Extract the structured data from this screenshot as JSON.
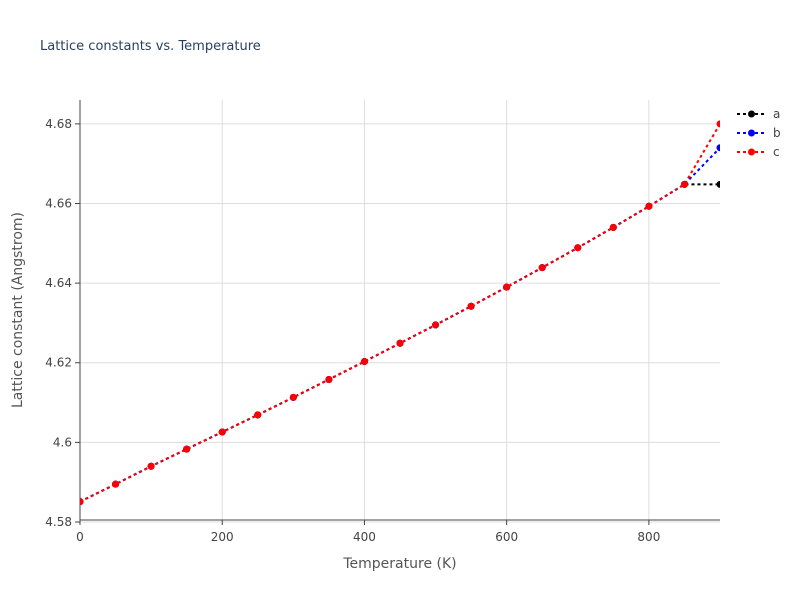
{
  "chart_data": {
    "type": "line",
    "title": "Lattice constants vs. Temperature",
    "xlabel": "Temperature (K)",
    "ylabel": "Lattice constant (Angstrom)",
    "xlim": [
      0,
      900
    ],
    "ylim": [
      4.5805,
      4.686
    ],
    "xticks": [
      0,
      200,
      400,
      600,
      800
    ],
    "xtick_labels": [
      "0",
      "200",
      "400",
      "600",
      "800"
    ],
    "yticks": [
      4.58,
      4.6,
      4.62,
      4.64,
      4.66,
      4.68
    ],
    "ytick_labels": [
      "4.58",
      "4.6",
      "4.62",
      "4.64",
      "4.66",
      "4.68"
    ],
    "grid": true,
    "legend_position": "top-right",
    "x": [
      0,
      50,
      100,
      150,
      200,
      250,
      300,
      350,
      400,
      450,
      500,
      550,
      600,
      650,
      700,
      750,
      800,
      850,
      900
    ],
    "series": [
      {
        "name": "a",
        "color": "#000000",
        "values": [
          4.5851,
          4.5895,
          4.594,
          4.5983,
          4.6026,
          4.6069,
          4.6113,
          4.6158,
          4.6203,
          4.6249,
          4.6295,
          4.6342,
          4.639,
          4.6439,
          4.6489,
          4.654,
          4.6593,
          4.6648,
          4.6648
        ]
      },
      {
        "name": "b",
        "color": "#0000ff",
        "values": [
          4.5851,
          4.5895,
          4.594,
          4.5983,
          4.6026,
          4.6069,
          4.6113,
          4.6158,
          4.6203,
          4.6249,
          4.6295,
          4.6342,
          4.639,
          4.6439,
          4.6489,
          4.654,
          4.6593,
          4.6648,
          4.674
        ]
      },
      {
        "name": "c",
        "color": "#ff0000",
        "values": [
          4.5851,
          4.5895,
          4.594,
          4.5983,
          4.6026,
          4.6069,
          4.6113,
          4.6158,
          4.6203,
          4.6249,
          4.6295,
          4.6342,
          4.639,
          4.6439,
          4.6489,
          4.654,
          4.6593,
          4.6648,
          4.68
        ]
      }
    ]
  }
}
